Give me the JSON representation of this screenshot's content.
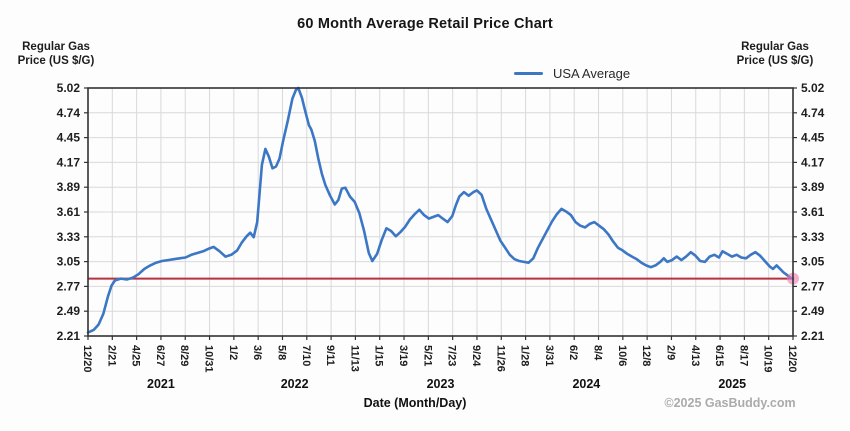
{
  "title": "60 Month Average Retail Price Chart",
  "legend": {
    "label": "USA Average"
  },
  "y_axis_left": {
    "header_line1": "Regular Gas",
    "header_line2": "Price (US $/G)"
  },
  "y_axis_right": {
    "header_line1": "Regular Gas",
    "header_line2": "Price (US $/G)"
  },
  "x_axis": {
    "title": "Date (Month/Day)"
  },
  "footer": {
    "copyright": "©2025 GasBuddy.com"
  },
  "colors": {
    "series_line": "#3b77c5",
    "reference_line": "#b93040",
    "end_marker": "rgba(240,122,176,0.6)",
    "grid": "#d9d9d9",
    "plot_border": "#333333",
    "copyright_text": "#ababab"
  },
  "chart_data": {
    "type": "line",
    "title": "60 Month Average Retail Price Chart",
    "xlabel": "Date (Month/Day)",
    "ylabel": "Regular Gas Price (US $/G)",
    "x_domain_note": "months elapsed since 2020-12-20, span 0-60",
    "xlim": [
      0,
      60
    ],
    "ylim": [
      2.21,
      5.02
    ],
    "grid": true,
    "legend_position": "top-right",
    "y_tick_labels": [
      "2.21",
      "2.49",
      "2.77",
      "3.05",
      "3.33",
      "3.61",
      "3.89",
      "4.17",
      "4.45",
      "4.74",
      "5.02"
    ],
    "x_tick_labels": [
      "12/20",
      "2/21",
      "4/25",
      "6/27",
      "8/29",
      "10/31",
      "1/2",
      "3/6",
      "5/8",
      "7/10",
      "9/11",
      "11/13",
      "1/15",
      "3/19",
      "5/21",
      "7/23",
      "9/24",
      "11/26",
      "1/28",
      "3/31",
      "6/2",
      "8/4",
      "10/6",
      "12/8",
      "2/9",
      "4/13",
      "6/15",
      "8/17",
      "10/19",
      "12/20"
    ],
    "year_labels": [
      {
        "label": "2021",
        "tick_center": 3
      },
      {
        "label": "2022",
        "tick_center": 8.5
      },
      {
        "label": "2023",
        "tick_center": 14.5
      },
      {
        "label": "2024",
        "tick_center": 20.5
      },
      {
        "label": "2025",
        "tick_center": 26.5
      }
    ],
    "reference_line": {
      "value": 2.86
    },
    "end_marker": {
      "x_month": 60,
      "value": 2.86
    },
    "series": [
      {
        "name": "USA Average",
        "points": [
          [
            0,
            2.25
          ],
          [
            0.5,
            2.28
          ],
          [
            0.9,
            2.34
          ],
          [
            1.3,
            2.46
          ],
          [
            1.7,
            2.66
          ],
          [
            2.0,
            2.78
          ],
          [
            2.3,
            2.84
          ],
          [
            2.8,
            2.86
          ],
          [
            3.3,
            2.85
          ],
          [
            3.8,
            2.87
          ],
          [
            4.3,
            2.91
          ],
          [
            4.8,
            2.97
          ],
          [
            5.3,
            3.01
          ],
          [
            5.8,
            3.04
          ],
          [
            6.3,
            3.06
          ],
          [
            6.8,
            3.07
          ],
          [
            7.3,
            3.08
          ],
          [
            7.8,
            3.09
          ],
          [
            8.3,
            3.1
          ],
          [
            8.8,
            3.13
          ],
          [
            9.3,
            3.15
          ],
          [
            9.8,
            3.17
          ],
          [
            10.3,
            3.2
          ],
          [
            10.7,
            3.22
          ],
          [
            11.2,
            3.17
          ],
          [
            11.7,
            3.11
          ],
          [
            12.2,
            3.13
          ],
          [
            12.7,
            3.18
          ],
          [
            13.1,
            3.27
          ],
          [
            13.5,
            3.34
          ],
          [
            13.8,
            3.38
          ],
          [
            14.1,
            3.33
          ],
          [
            14.4,
            3.5
          ],
          [
            14.8,
            4.15
          ],
          [
            15.1,
            4.33
          ],
          [
            15.4,
            4.24
          ],
          [
            15.7,
            4.11
          ],
          [
            16.0,
            4.13
          ],
          [
            16.3,
            4.22
          ],
          [
            16.6,
            4.42
          ],
          [
            17.0,
            4.65
          ],
          [
            17.4,
            4.9
          ],
          [
            17.7,
            5.0
          ],
          [
            17.9,
            5.02
          ],
          [
            18.2,
            4.91
          ],
          [
            18.5,
            4.75
          ],
          [
            18.8,
            4.6
          ],
          [
            19.0,
            4.55
          ],
          [
            19.3,
            4.42
          ],
          [
            19.6,
            4.22
          ],
          [
            19.9,
            4.05
          ],
          [
            20.2,
            3.92
          ],
          [
            20.6,
            3.8
          ],
          [
            21.0,
            3.7
          ],
          [
            21.3,
            3.75
          ],
          [
            21.6,
            3.88
          ],
          [
            21.9,
            3.89
          ],
          [
            22.3,
            3.79
          ],
          [
            22.7,
            3.73
          ],
          [
            23.1,
            3.6
          ],
          [
            23.5,
            3.4
          ],
          [
            23.9,
            3.15
          ],
          [
            24.2,
            3.06
          ],
          [
            24.6,
            3.14
          ],
          [
            25.0,
            3.3
          ],
          [
            25.4,
            3.43
          ],
          [
            25.8,
            3.4
          ],
          [
            26.2,
            3.34
          ],
          [
            26.6,
            3.39
          ],
          [
            27.0,
            3.45
          ],
          [
            27.4,
            3.53
          ],
          [
            27.8,
            3.59
          ],
          [
            28.2,
            3.64
          ],
          [
            28.6,
            3.58
          ],
          [
            29.0,
            3.54
          ],
          [
            29.4,
            3.56
          ],
          [
            29.8,
            3.58
          ],
          [
            30.2,
            3.54
          ],
          [
            30.6,
            3.5
          ],
          [
            31.0,
            3.57
          ],
          [
            31.3,
            3.69
          ],
          [
            31.6,
            3.79
          ],
          [
            32.0,
            3.84
          ],
          [
            32.4,
            3.8
          ],
          [
            32.8,
            3.84
          ],
          [
            33.1,
            3.86
          ],
          [
            33.5,
            3.81
          ],
          [
            33.9,
            3.65
          ],
          [
            34.3,
            3.53
          ],
          [
            34.7,
            3.41
          ],
          [
            35.1,
            3.29
          ],
          [
            35.5,
            3.21
          ],
          [
            35.9,
            3.13
          ],
          [
            36.3,
            3.08
          ],
          [
            36.7,
            3.06
          ],
          [
            37.1,
            3.05
          ],
          [
            37.5,
            3.04
          ],
          [
            37.9,
            3.09
          ],
          [
            38.3,
            3.21
          ],
          [
            38.7,
            3.31
          ],
          [
            39.1,
            3.41
          ],
          [
            39.5,
            3.51
          ],
          [
            39.9,
            3.59
          ],
          [
            40.3,
            3.65
          ],
          [
            40.7,
            3.62
          ],
          [
            41.1,
            3.58
          ],
          [
            41.5,
            3.5
          ],
          [
            41.9,
            3.46
          ],
          [
            42.3,
            3.44
          ],
          [
            42.7,
            3.48
          ],
          [
            43.1,
            3.5
          ],
          [
            43.5,
            3.46
          ],
          [
            43.9,
            3.42
          ],
          [
            44.3,
            3.36
          ],
          [
            44.7,
            3.28
          ],
          [
            45.1,
            3.21
          ],
          [
            45.5,
            3.18
          ],
          [
            45.9,
            3.14
          ],
          [
            46.3,
            3.11
          ],
          [
            46.7,
            3.08
          ],
          [
            47.1,
            3.04
          ],
          [
            47.5,
            3.01
          ],
          [
            47.9,
            2.99
          ],
          [
            48.3,
            3.01
          ],
          [
            48.7,
            3.05
          ],
          [
            49.0,
            3.09
          ],
          [
            49.3,
            3.05
          ],
          [
            49.7,
            3.07
          ],
          [
            50.1,
            3.11
          ],
          [
            50.5,
            3.07
          ],
          [
            50.9,
            3.11
          ],
          [
            51.3,
            3.16
          ],
          [
            51.7,
            3.12
          ],
          [
            52.1,
            3.06
          ],
          [
            52.5,
            3.05
          ],
          [
            52.9,
            3.11
          ],
          [
            53.3,
            3.13
          ],
          [
            53.7,
            3.1
          ],
          [
            54.0,
            3.17
          ],
          [
            54.4,
            3.14
          ],
          [
            54.8,
            3.11
          ],
          [
            55.2,
            3.13
          ],
          [
            55.6,
            3.1
          ],
          [
            56.0,
            3.09
          ],
          [
            56.4,
            3.13
          ],
          [
            56.8,
            3.16
          ],
          [
            57.2,
            3.12
          ],
          [
            57.6,
            3.06
          ],
          [
            58.0,
            3.0
          ],
          [
            58.3,
            2.97
          ],
          [
            58.6,
            3.01
          ],
          [
            58.9,
            2.97
          ],
          [
            59.2,
            2.93
          ],
          [
            59.5,
            2.9
          ],
          [
            59.8,
            2.87
          ],
          [
            60,
            2.86
          ]
        ]
      }
    ]
  }
}
